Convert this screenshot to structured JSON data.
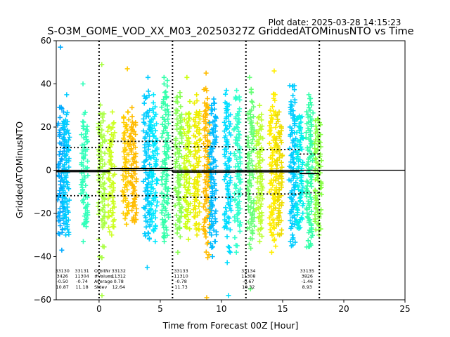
{
  "chart_data": {
    "type": "scatter",
    "plot_date": "Plot date: 2025-03-28 14:15:23",
    "title": "S-O3M_GOME_VOD_XX_M03_20250327Z GriddedATOMinusNTO vs Time",
    "xlabel": "Time from Forecast 00Z [Hour]",
    "ylabel": "GriddedATOMinusNTO",
    "xlim": [
      -3.5,
      25
    ],
    "ylim": [
      -60,
      60
    ],
    "x_ticks": [
      0,
      5,
      10,
      15,
      20,
      25
    ],
    "y_ticks": [
      -60,
      -40,
      -20,
      0,
      20,
      40,
      60
    ],
    "x_tick_labels": [
      "0",
      "5",
      "10",
      "15",
      "20",
      "25"
    ],
    "y_tick_labels": [
      "−60",
      "−40",
      "−20",
      "0",
      "20",
      "40",
      "60"
    ],
    "grid": false,
    "marker": "+",
    "forecast_boundaries": [
      0,
      6,
      12,
      18
    ],
    "zero_line": 0,
    "bands": [
      {
        "x": -3.1,
        "center": 0,
        "upper": 22,
        "lower": -25,
        "color": "#00aaff",
        "spread_up": 8,
        "spread_down": 5,
        "max_out": 57,
        "min_out": -37
      },
      {
        "x": -2.7,
        "center": -1,
        "upper": 22,
        "lower": -25,
        "color": "#00ccff",
        "spread_up": 6,
        "spread_down": 5,
        "max_out": 35,
        "min_out": -30
      },
      {
        "x": -1.2,
        "center": -1,
        "upper": 20,
        "lower": -24,
        "color": "#33ffbb",
        "spread_up": 7,
        "spread_down": 5,
        "max_out": 40,
        "min_out": -33
      },
      {
        "x": 0.2,
        "center": 0,
        "upper": 22,
        "lower": -27,
        "color": "#aaff44",
        "spread_up": 12,
        "spread_down": 14,
        "max_out": 49,
        "min_out": -58
      },
      {
        "x": 1.0,
        "center": 0,
        "upper": 18,
        "lower": -24,
        "color": "#ccff22",
        "spread_up": 5,
        "spread_down": 5,
        "max_out": 27,
        "min_out": -30
      },
      {
        "x": 2.2,
        "center": 0,
        "upper": 22,
        "lower": -18,
        "color": "#ffcc00",
        "spread_up": 8,
        "spread_down": 5,
        "max_out": 47,
        "min_out": -25
      },
      {
        "x": 2.8,
        "center": 0,
        "upper": 20,
        "lower": -20,
        "color": "#ffbb00",
        "spread_up": 5,
        "spread_down": 4,
        "max_out": 29,
        "min_out": -24
      },
      {
        "x": 3.9,
        "center": 0,
        "upper": 28,
        "lower": -27,
        "color": "#00ccff",
        "spread_up": 10,
        "spread_down": 8,
        "max_out": 43,
        "min_out": -45
      },
      {
        "x": 4.5,
        "center": 0,
        "upper": 24,
        "lower": -23,
        "color": "#00e8ff",
        "spread_up": 8,
        "spread_down": 6,
        "max_out": 35,
        "min_out": -33
      },
      {
        "x": 5.4,
        "center": 1,
        "upper": 34,
        "lower": -27,
        "color": "#33ffaa",
        "spread_up": 8,
        "spread_down": 6,
        "max_out": 43,
        "min_out": -33
      },
      {
        "x": 6.5,
        "center": -1,
        "upper": 28,
        "lower": -25,
        "color": "#88ff55",
        "spread_up": 7,
        "spread_down": 6,
        "max_out": 36,
        "min_out": -38
      },
      {
        "x": 7.2,
        "center": -1,
        "upper": 24,
        "lower": -22,
        "color": "#ccff11",
        "spread_up": 8,
        "spread_down": 8,
        "max_out": 43,
        "min_out": -32
      },
      {
        "x": 8.0,
        "center": -1,
        "upper": 26,
        "lower": -22,
        "color": "#eeee00",
        "spread_up": 8,
        "spread_down": 6,
        "max_out": 35,
        "min_out": -30
      },
      {
        "x": 8.8,
        "center": -2,
        "upper": 30,
        "lower": -30,
        "color": "#ffbb00",
        "spread_up": 8,
        "spread_down": 12,
        "max_out": 45,
        "min_out": -59
      },
      {
        "x": 9.3,
        "center": -1,
        "upper": 26,
        "lower": -30,
        "color": "#00bbff",
        "spread_up": 6,
        "spread_down": 6,
        "max_out": 33,
        "min_out": -40
      },
      {
        "x": 10.5,
        "center": -1,
        "upper": 28,
        "lower": -28,
        "color": "#00ddff",
        "spread_up": 8,
        "spread_down": 18,
        "max_out": 37,
        "min_out": -58
      },
      {
        "x": 11.3,
        "center": -1,
        "upper": 27,
        "lower": -25,
        "color": "#33ffcc",
        "spread_up": 8,
        "spread_down": 10,
        "max_out": 37,
        "min_out": -38
      },
      {
        "x": 12.4,
        "center": -1,
        "upper": 28,
        "lower": -28,
        "color": "#66ff77",
        "spread_up": 10,
        "spread_down": 12,
        "max_out": 43,
        "min_out": -55
      },
      {
        "x": 13.1,
        "center": -1,
        "upper": 20,
        "lower": -24,
        "color": "#bbff33",
        "spread_up": 6,
        "spread_down": 8,
        "max_out": 30,
        "min_out": -33
      },
      {
        "x": 14.2,
        "center": -1,
        "upper": 28,
        "lower": -28,
        "color": "#ffee00",
        "spread_up": 8,
        "spread_down": 8,
        "max_out": 46,
        "min_out": -38
      },
      {
        "x": 14.7,
        "center": -1,
        "upper": 20,
        "lower": -24,
        "color": "#eedd00",
        "spread_up": 6,
        "spread_down": 6,
        "max_out": 27,
        "min_out": -30
      },
      {
        "x": 15.8,
        "center": -1,
        "upper": 32,
        "lower": -27,
        "color": "#00ccff",
        "spread_up": 8,
        "spread_down": 8,
        "max_out": 39,
        "min_out": -35
      },
      {
        "x": 16.4,
        "center": -2,
        "upper": 22,
        "lower": -24,
        "color": "#00eeee",
        "spread_up": 4,
        "spread_down": 4,
        "max_out": 20,
        "min_out": -27
      },
      {
        "x": 17.2,
        "center": -2,
        "upper": 28,
        "lower": -30,
        "color": "#33ffaa",
        "spread_up": 6,
        "spread_down": 6,
        "max_out": 35,
        "min_out": -34
      },
      {
        "x": 17.9,
        "center": -2,
        "upper": 18,
        "lower": -24,
        "color": "#88ff44",
        "spread_up": 6,
        "spread_down": 4,
        "max_out": 19,
        "min_out": -30
      }
    ],
    "segments": [
      {
        "x_start": -3.5,
        "x_end": 0.9,
        "mean": -0.6,
        "upper": 10.5,
        "lower": -11.8
      },
      {
        "x_start": 0.9,
        "x_end": 6,
        "mean": 0.8,
        "upper": 13.4,
        "lower": -11.8
      },
      {
        "x_start": 6,
        "x_end": 11.1,
        "mean": -0.8,
        "upper": 10.9,
        "lower": -12.5
      },
      {
        "x_start": 11.1,
        "x_end": 16.4,
        "mean": -0.7,
        "upper": 9.6,
        "lower": -11.0
      },
      {
        "x_start": 16.4,
        "x_end": 18,
        "mean": -1.5,
        "upper": 7.5,
        "lower": -10.4
      }
    ],
    "annotations": [
      {
        "x": -3.0,
        "lines": [
          "33130",
          "3426",
          "-0.50",
          "10.87"
        ]
      },
      {
        "x": -1.4,
        "lines": [
          "33131",
          "11304",
          "-0.74",
          "11.18"
        ]
      },
      {
        "x": -0.4,
        "align": "left",
        "lines": [
          "OrbitNr",
          "#Values",
          "Average",
          "Stdev"
        ]
      },
      {
        "x": 1.6,
        "lines": [
          "33132",
          "11312",
          "0.78",
          "12.64"
        ]
      },
      {
        "x": 6.7,
        "lines": [
          "33133",
          "11310",
          "-0.78",
          "11.73"
        ]
      },
      {
        "x": 12.2,
        "lines": [
          "33134",
          "11308",
          "-0.67",
          "10.32"
        ]
      },
      {
        "x": 17.0,
        "lines": [
          "33135",
          "3826",
          "-1.46",
          "8.93"
        ]
      }
    ]
  }
}
